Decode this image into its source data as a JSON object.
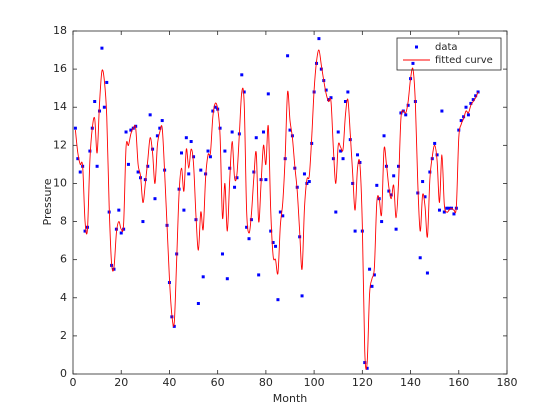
{
  "chart_data": {
    "type": "scatter_fit",
    "x_label": "Month",
    "y_label": "Pressure",
    "xlim": [
      0,
      180
    ],
    "xticks": [
      0,
      20,
      40,
      60,
      80,
      100,
      120,
      140,
      160,
      180
    ],
    "ylim": [
      0,
      18
    ],
    "yticks": [
      0,
      2,
      4,
      6,
      8,
      10,
      12,
      14,
      16,
      18
    ],
    "legend": "top-right",
    "x": [
      1,
      2,
      3,
      4,
      5,
      6,
      7,
      8,
      9,
      10,
      11,
      12,
      13,
      14,
      15,
      16,
      17,
      18,
      19,
      20,
      21,
      22,
      23,
      24,
      25,
      26,
      27,
      28,
      29,
      30,
      31,
      32,
      33,
      34,
      35,
      36,
      37,
      38,
      39,
      40,
      41,
      42,
      43,
      44,
      45,
      46,
      47,
      48,
      49,
      50,
      51,
      52,
      53,
      54,
      55,
      56,
      57,
      58,
      59,
      60,
      61,
      62,
      63,
      64,
      65,
      66,
      67,
      68,
      69,
      70,
      71,
      72,
      73,
      74,
      75,
      76,
      77,
      78,
      79,
      80,
      81,
      82,
      83,
      84,
      85,
      86,
      87,
      88,
      89,
      90,
      91,
      92,
      93,
      94,
      95,
      96,
      97,
      98,
      99,
      100,
      101,
      102,
      103,
      104,
      105,
      106,
      107,
      108,
      109,
      110,
      111,
      112,
      113,
      114,
      115,
      116,
      117,
      118,
      119,
      120,
      121,
      122,
      123,
      124,
      125,
      126,
      127,
      128,
      129,
      130,
      131,
      132,
      133,
      134,
      135,
      136,
      137,
      138,
      139,
      140,
      141,
      142,
      143,
      144,
      145,
      146,
      147,
      148,
      149,
      150,
      151,
      152,
      153,
      154,
      155,
      156,
      157,
      158,
      159,
      160,
      161,
      162,
      163,
      164,
      165,
      166,
      167,
      168
    ],
    "series": [
      {
        "name": "data",
        "color": "#0000ff",
        "style": "points",
        "values": [
          12.9,
          11.3,
          10.6,
          10.9,
          7.5,
          7.7,
          11.7,
          12.9,
          14.3,
          10.9,
          13.8,
          17.1,
          14.0,
          15.3,
          8.5,
          5.7,
          5.5,
          7.6,
          8.6,
          7.4,
          7.6,
          12.7,
          11.0,
          12.8,
          12.9,
          13.0,
          10.6,
          10.3,
          8.0,
          10.2,
          10.9,
          13.6,
          11.8,
          9.2,
          12.5,
          12.9,
          13.3,
          10.7,
          7.8,
          4.8,
          3.0,
          2.5,
          6.3,
          9.7,
          11.6,
          8.6,
          12.4,
          10.5,
          12.2,
          11.4,
          8.1,
          3.7,
          10.7,
          5.1,
          10.5,
          11.7,
          11.4,
          13.8,
          14.0,
          13.9,
          12.9,
          6.3,
          11.7,
          5.0,
          10.8,
          12.7,
          9.8,
          10.3,
          12.6,
          15.7,
          14.8,
          7.7,
          7.1,
          8.1,
          10.6,
          12.4,
          5.2,
          10.2,
          12.7,
          10.2,
          14.7,
          7.5,
          6.9,
          6.7,
          3.9,
          8.5,
          8.3,
          11.3,
          16.7,
          12.8,
          12.5,
          10.8,
          9.8,
          7.2,
          4.1,
          10.5,
          10.0,
          10.1,
          12.1,
          14.8,
          16.3,
          17.6,
          16.0,
          15.4,
          14.9,
          14.4,
          14.5,
          11.3,
          8.5,
          12.7,
          11.7,
          11.3,
          14.3,
          14.8,
          12.3,
          10.0,
          7.5,
          11.5,
          11.1,
          7.5,
          0.6,
          0.3,
          5.5,
          4.6,
          5.2,
          9.9,
          9.2,
          8.0,
          12.5,
          10.9,
          9.6,
          9.4,
          10.4,
          7.6,
          10.9,
          13.7,
          13.8,
          13.6,
          14.1,
          15.5,
          16.3,
          14.3,
          9.5,
          6.1,
          10.1,
          9.3,
          5.3,
          10.6,
          11.3,
          12.1,
          11.5,
          8.6,
          13.8,
          8.5,
          8.7,
          8.7,
          8.7,
          8.4,
          8.7,
          12.8,
          13.3,
          13.5,
          14.0,
          13.6,
          14.2,
          14.4,
          14.6,
          14.8
        ]
      },
      {
        "name": "fitted curve",
        "color": "#ff0000",
        "style": "line",
        "values": [
          12.8,
          11.6,
          11.0,
          10.9,
          8.0,
          7.6,
          11.2,
          12.9,
          13.4,
          11.6,
          14.2,
          15.9,
          15.4,
          13.5,
          8.8,
          5.8,
          5.6,
          7.4,
          8.0,
          7.6,
          7.9,
          11.9,
          12.0,
          12.6,
          12.9,
          12.9,
          11.0,
          10.4,
          9.0,
          10.0,
          11.2,
          12.4,
          11.6,
          10.0,
          12.0,
          12.7,
          12.9,
          10.6,
          7.8,
          5.0,
          3.1,
          2.7,
          6.0,
          9.5,
          10.8,
          9.6,
          11.8,
          10.8,
          11.8,
          11.0,
          8.3,
          6.5,
          8.5,
          7.6,
          10.3,
          11.5,
          11.6,
          13.5,
          14.2,
          13.9,
          12.5,
          8.2,
          10.0,
          7.5,
          10.2,
          12.2,
          10.3,
          10.5,
          12.6,
          14.8,
          14.2,
          8.6,
          7.4,
          8.4,
          10.3,
          11.6,
          8.0,
          10.0,
          12.0,
          11.0,
          13.0,
          8.6,
          6.2,
          6.0,
          5.3,
          7.8,
          9.0,
          11.4,
          14.8,
          13.3,
          12.4,
          10.9,
          9.6,
          7.5,
          5.5,
          8.7,
          10.2,
          10.4,
          12.4,
          14.9,
          16.4,
          17.0,
          16.2,
          15.4,
          14.7,
          14.3,
          14.3,
          11.8,
          10.0,
          12.0,
          11.9,
          11.8,
          13.6,
          14.4,
          12.6,
          10.5,
          8.6,
          10.8,
          11.0,
          7.8,
          1.2,
          0.6,
          4.2,
          5.0,
          5.6,
          9.0,
          9.2,
          8.4,
          11.8,
          11.0,
          9.8,
          9.2,
          9.9,
          8.2,
          10.0,
          13.4,
          13.8,
          13.7,
          14.3,
          15.5,
          16.0,
          14.2,
          10.0,
          7.5,
          9.4,
          8.8,
          7.2,
          10.2,
          11.4,
          12.0,
          11.2,
          9.0,
          11.5,
          8.9,
          8.5,
          8.6,
          8.7,
          8.6,
          8.8,
          12.4,
          13.1,
          13.4,
          13.8,
          13.7,
          14.1,
          14.3,
          14.5,
          14.8
        ]
      }
    ]
  }
}
